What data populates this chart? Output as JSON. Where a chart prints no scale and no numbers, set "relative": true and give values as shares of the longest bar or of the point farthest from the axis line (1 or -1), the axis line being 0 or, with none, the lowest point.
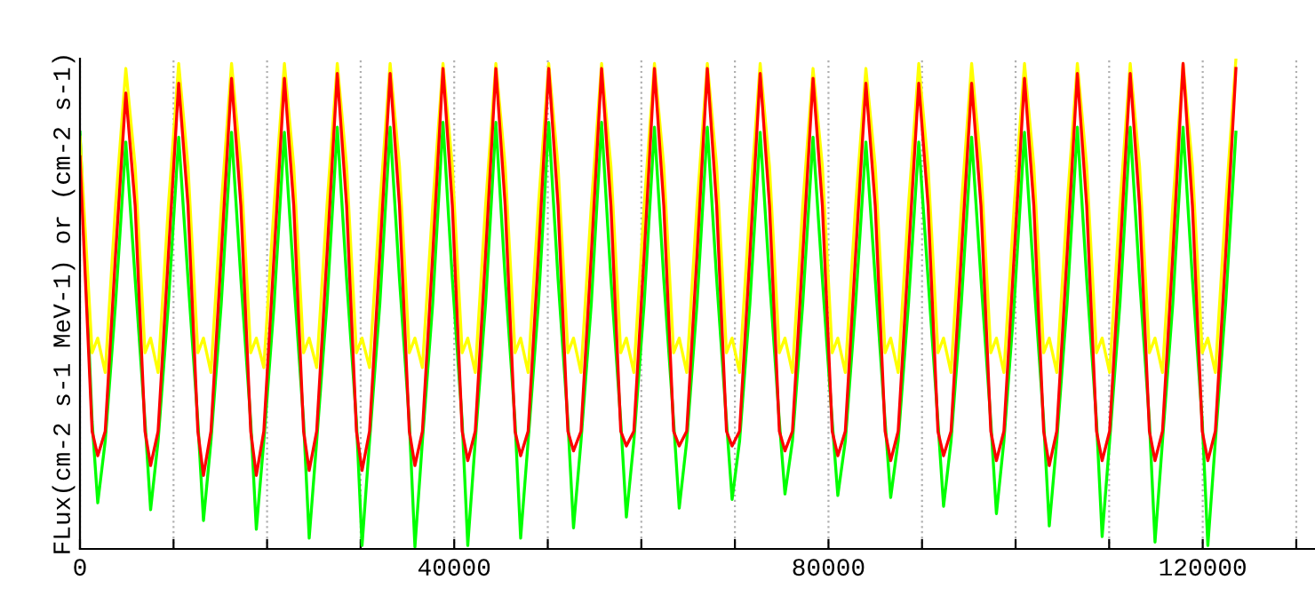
{
  "chart_data": {
    "type": "line",
    "relative": true,
    "ylabel": "FLux(cm-2 s-1 MeV-1) or (cm-2 s-1)",
    "xlim": [
      0,
      132000
    ],
    "xticks": [
      0,
      {
        "value": 10000,
        "label": null
      },
      {
        "value": 20000,
        "label": null
      },
      {
        "value": 30000,
        "label": null
      },
      40000,
      {
        "value": 50000,
        "label": null
      },
      {
        "value": 60000,
        "label": null
      },
      {
        "value": 70000,
        "label": null
      },
      80000,
      {
        "value": 90000,
        "label": null
      },
      {
        "value": 100000,
        "label": null
      },
      {
        "value": 110000,
        "label": null
      },
      120000,
      {
        "value": 130000,
        "label": null
      }
    ],
    "grid": "x",
    "tick_labels": "x",
    "line_style": "solid",
    "marker": "none",
    "x": [
      0,
      1300,
      1900,
      2700,
      3800,
      4900,
      5900,
      6950,
      7550,
      8350,
      9450,
      10550,
      11550,
      12600,
      13200,
      14000,
      15100,
      16200,
      17200,
      18250,
      18850,
      19650,
      20750,
      21850,
      22850,
      23900,
      24500,
      25300,
      26400,
      27500,
      28500,
      29550,
      30150,
      30950,
      32050,
      33150,
      34150,
      35200,
      35800,
      36600,
      37700,
      38800,
      39800,
      40850,
      41450,
      42250,
      43350,
      44450,
      45450,
      46500,
      47100,
      47900,
      49000,
      50100,
      51100,
      52150,
      52750,
      53550,
      54650,
      55750,
      56750,
      57800,
      58400,
      59200,
      60300,
      61400,
      62400,
      63450,
      64050,
      64850,
      65950,
      67050,
      68050,
      69100,
      69700,
      70500,
      71600,
      72700,
      73700,
      74750,
      75350,
      76150,
      77250,
      78350,
      79350,
      80400,
      81000,
      81800,
      82900,
      84000,
      85000,
      86050,
      86650,
      87450,
      88550,
      89650,
      90650,
      91700,
      92300,
      93100,
      94200,
      95300,
      96300,
      97350,
      97950,
      98750,
      99850,
      100950,
      101950,
      103000,
      103600,
      104400,
      105500,
      106600,
      107600,
      108650,
      109250,
      110050,
      111150,
      112250,
      113250,
      114300,
      114900,
      115700,
      116800,
      117900,
      118900,
      119950,
      120550,
      121350,
      122450,
      123550
    ],
    "series": [
      {
        "color": "#00ff00",
        "values": [
          0.85,
          0.26,
          0.094,
          0.22,
          0.5,
          0.83,
          0.55,
          0.26,
          0.08,
          0.22,
          0.5,
          0.84,
          0.55,
          0.26,
          0.058,
          0.22,
          0.5,
          0.85,
          0.55,
          0.26,
          0.04,
          0.22,
          0.5,
          0.85,
          0.55,
          0.26,
          0.022,
          0.22,
          0.5,
          0.86,
          0.55,
          0.26,
          0.007,
          0.22,
          0.5,
          0.86,
          0.55,
          0.26,
          0.004,
          0.22,
          0.5,
          0.87,
          0.55,
          0.26,
          0.007,
          0.22,
          0.5,
          0.87,
          0.55,
          0.26,
          0.022,
          0.22,
          0.5,
          0.87,
          0.55,
          0.26,
          0.043,
          0.22,
          0.5,
          0.87,
          0.55,
          0.26,
          0.065,
          0.22,
          0.5,
          0.86,
          0.55,
          0.26,
          0.083,
          0.22,
          0.5,
          0.86,
          0.55,
          0.26,
          0.101,
          0.22,
          0.5,
          0.85,
          0.55,
          0.26,
          0.112,
          0.22,
          0.5,
          0.84,
          0.55,
          0.26,
          0.109,
          0.22,
          0.5,
          0.83,
          0.55,
          0.26,
          0.105,
          0.22,
          0.5,
          0.83,
          0.55,
          0.26,
          0.087,
          0.22,
          0.5,
          0.84,
          0.55,
          0.26,
          0.072,
          0.22,
          0.5,
          0.85,
          0.55,
          0.26,
          0.047,
          0.22,
          0.5,
          0.86,
          0.55,
          0.26,
          0.025,
          0.22,
          0.5,
          0.86,
          0.55,
          0.26,
          0.014,
          0.22,
          0.5,
          0.86,
          0.55,
          0.26,
          0.007,
          0.22,
          0.5,
          0.85
        ]
      },
      {
        "color": "#ffff00",
        "values": [
          0.84,
          0.4,
          0.43,
          0.36,
          0.7,
          0.98,
          0.78,
          0.4,
          0.43,
          0.36,
          0.7,
          0.99,
          0.78,
          0.4,
          0.43,
          0.36,
          0.7,
          0.99,
          0.78,
          0.4,
          0.43,
          0.37,
          0.7,
          0.99,
          0.78,
          0.4,
          0.43,
          0.37,
          0.7,
          0.99,
          0.78,
          0.4,
          0.43,
          0.37,
          0.7,
          0.99,
          0.78,
          0.4,
          0.43,
          0.37,
          0.7,
          0.99,
          0.78,
          0.4,
          0.43,
          0.36,
          0.7,
          0.99,
          0.78,
          0.4,
          0.43,
          0.36,
          0.7,
          0.99,
          0.78,
          0.4,
          0.43,
          0.36,
          0.7,
          0.99,
          0.78,
          0.4,
          0.43,
          0.36,
          0.7,
          0.99,
          0.78,
          0.4,
          0.43,
          0.36,
          0.7,
          0.99,
          0.78,
          0.4,
          0.43,
          0.36,
          0.7,
          0.99,
          0.78,
          0.4,
          0.43,
          0.36,
          0.7,
          0.98,
          0.78,
          0.4,
          0.43,
          0.36,
          0.7,
          0.98,
          0.78,
          0.4,
          0.43,
          0.36,
          0.7,
          0.99,
          0.78,
          0.4,
          0.43,
          0.36,
          0.7,
          0.99,
          0.78,
          0.4,
          0.43,
          0.36,
          0.7,
          0.99,
          0.78,
          0.4,
          0.43,
          0.36,
          0.7,
          0.99,
          0.78,
          0.4,
          0.43,
          0.36,
          0.7,
          0.99,
          0.78,
          0.4,
          0.43,
          0.36,
          0.7,
          0.99,
          0.78,
          0.4,
          0.43,
          0.36,
          0.7,
          1.0
        ]
      },
      {
        "color": "#ff0000",
        "values": [
          0.8,
          0.24,
          0.19,
          0.24,
          0.6,
          0.93,
          0.7,
          0.24,
          0.17,
          0.24,
          0.6,
          0.95,
          0.7,
          0.24,
          0.15,
          0.24,
          0.6,
          0.96,
          0.7,
          0.24,
          0.15,
          0.24,
          0.6,
          0.96,
          0.7,
          0.24,
          0.16,
          0.24,
          0.6,
          0.97,
          0.7,
          0.24,
          0.16,
          0.24,
          0.6,
          0.97,
          0.7,
          0.24,
          0.17,
          0.24,
          0.6,
          0.98,
          0.7,
          0.24,
          0.18,
          0.24,
          0.6,
          0.98,
          0.7,
          0.24,
          0.19,
          0.24,
          0.6,
          0.98,
          0.7,
          0.24,
          0.2,
          0.24,
          0.6,
          0.98,
          0.7,
          0.24,
          0.21,
          0.24,
          0.6,
          0.98,
          0.7,
          0.24,
          0.21,
          0.24,
          0.6,
          0.98,
          0.7,
          0.24,
          0.21,
          0.24,
          0.6,
          0.97,
          0.7,
          0.24,
          0.2,
          0.24,
          0.6,
          0.96,
          0.7,
          0.24,
          0.19,
          0.24,
          0.6,
          0.95,
          0.7,
          0.24,
          0.18,
          0.24,
          0.6,
          0.95,
          0.7,
          0.24,
          0.19,
          0.24,
          0.6,
          0.95,
          0.7,
          0.24,
          0.18,
          0.24,
          0.6,
          0.96,
          0.7,
          0.24,
          0.17,
          0.24,
          0.6,
          0.97,
          0.7,
          0.24,
          0.18,
          0.24,
          0.6,
          0.97,
          0.7,
          0.24,
          0.18,
          0.24,
          0.6,
          0.99,
          0.7,
          0.24,
          0.18,
          0.24,
          0.6,
          0.98
        ]
      }
    ]
  }
}
